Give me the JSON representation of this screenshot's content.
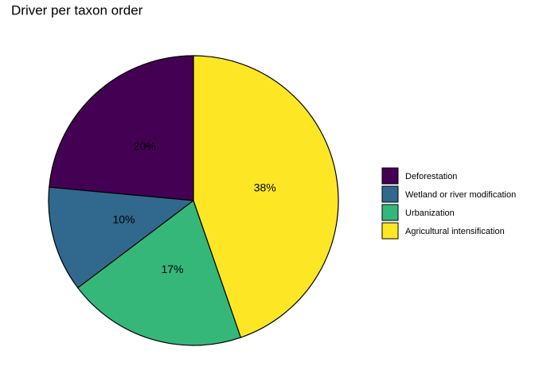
{
  "chart_data": {
    "type": "pie",
    "title": "Driver per taxon order",
    "categories": [
      "Deforestation",
      "Wetland or river modification",
      "Urbanization",
      "Agricultural intensification"
    ],
    "values": [
      20,
      10,
      17,
      38
    ],
    "value_labels": [
      "20%",
      "10%",
      "17%",
      "38%"
    ],
    "colors": [
      "#440154",
      "#31688e",
      "#35b779",
      "#fde725"
    ],
    "legend": "right"
  }
}
